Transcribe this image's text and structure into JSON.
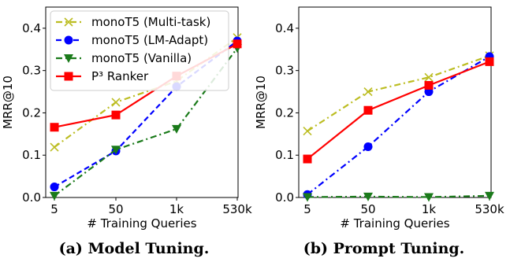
{
  "chart_data": [
    {
      "type": "line",
      "caption": "(a) Model Tuning.",
      "xlabel": "# Training Queries",
      "ylabel": "MRR@10",
      "categories": [
        "5",
        "50",
        "1k",
        "530k"
      ],
      "ylim": [
        0,
        0.45
      ],
      "yticks": [
        "0.0",
        "0.1",
        "0.2",
        "0.3",
        "0.4"
      ],
      "yticks_values": [
        0,
        0.1,
        0.2,
        0.3,
        0.4
      ],
      "grid": false,
      "legend": "top-left",
      "series": [
        {
          "name": "monoT5 (Multi-task)",
          "color": "#bcbd22",
          "dash": "8 4 2 4",
          "marker": "x",
          "values": [
            0.119,
            0.225,
            0.275,
            0.378
          ]
        },
        {
          "name": "monoT5 (LM-Adapt)",
          "color": "#0000ff",
          "dash": "7 4",
          "marker": "circle",
          "values": [
            0.025,
            0.11,
            0.262,
            0.37
          ]
        },
        {
          "name": "monoT5 (Vanilla)",
          "color": "#1a7a1a",
          "dash": "8 4 2 4",
          "marker": "triangle-down",
          "values": [
            0.004,
            0.113,
            0.162,
            0.353
          ]
        },
        {
          "name": "P³ Ranker",
          "color": "#ff0000",
          "dash": "",
          "marker": "square",
          "values": [
            0.166,
            0.195,
            0.287,
            0.363
          ]
        }
      ]
    },
    {
      "type": "line",
      "caption": "(b) Prompt Tuning.",
      "xlabel": "# Training Queries",
      "ylabel": "MRR@10",
      "categories": [
        "5",
        "50",
        "1k",
        "530k"
      ],
      "ylim": [
        0,
        0.45
      ],
      "yticks": [
        "0.0",
        "0.1",
        "0.2",
        "0.3",
        "0.4"
      ],
      "yticks_values": [
        0,
        0.1,
        0.2,
        0.3,
        0.4
      ],
      "grid": false,
      "series": [
        {
          "name": "monoT5 (Multi-task)",
          "color": "#bcbd22",
          "dash": "8 4 2 4",
          "marker": "x",
          "values": [
            0.157,
            0.25,
            0.284,
            0.335
          ]
        },
        {
          "name": "monoT5 (LM-Adapt)",
          "color": "#0000ff",
          "dash": "8 4 2 4",
          "marker": "circle",
          "values": [
            0.007,
            0.12,
            0.25,
            0.333
          ]
        },
        {
          "name": "monoT5 (Vanilla)",
          "color": "#1a7a1a",
          "dash": "8 4 2 4",
          "marker": "triangle-down",
          "values": [
            0.001,
            0.002,
            0.001,
            0.004
          ]
        },
        {
          "name": "P³ Ranker",
          "color": "#ff0000",
          "dash": "",
          "marker": "square",
          "values": [
            0.091,
            0.206,
            0.265,
            0.321
          ]
        }
      ]
    }
  ]
}
